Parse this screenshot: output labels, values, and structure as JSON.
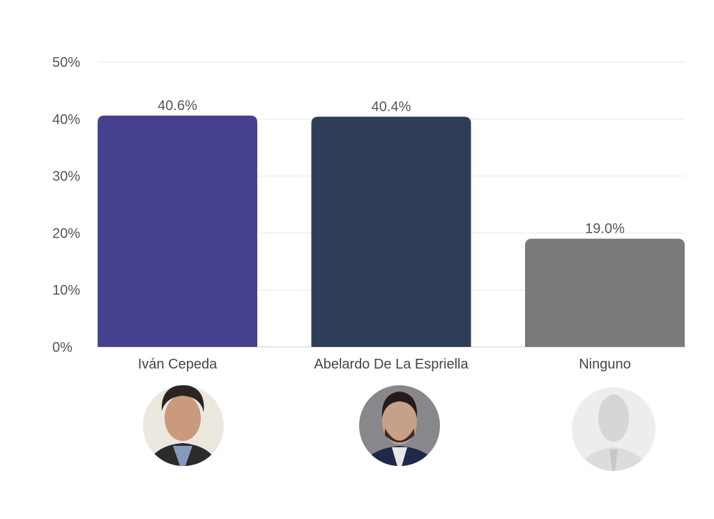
{
  "chart_data": {
    "type": "bar",
    "title": "",
    "xlabel": "",
    "ylabel": "",
    "ylim": [
      0,
      50
    ],
    "yticks": [
      "0%",
      "10%",
      "20%",
      "30%",
      "40%",
      "50%"
    ],
    "grid": true,
    "categories": [
      "Iván Cepeda",
      "Abelardo De La Espriella",
      "Ninguno"
    ],
    "values": [
      40.6,
      40.4,
      19.0
    ],
    "data_labels": [
      "40.6%",
      "40.4%",
      "19.0%"
    ],
    "colors": [
      "#45418f",
      "#2f3e58",
      "#7a7a7a"
    ],
    "avatars": [
      "portrait-photo",
      "portrait-photo",
      "faceless-figure"
    ]
  }
}
